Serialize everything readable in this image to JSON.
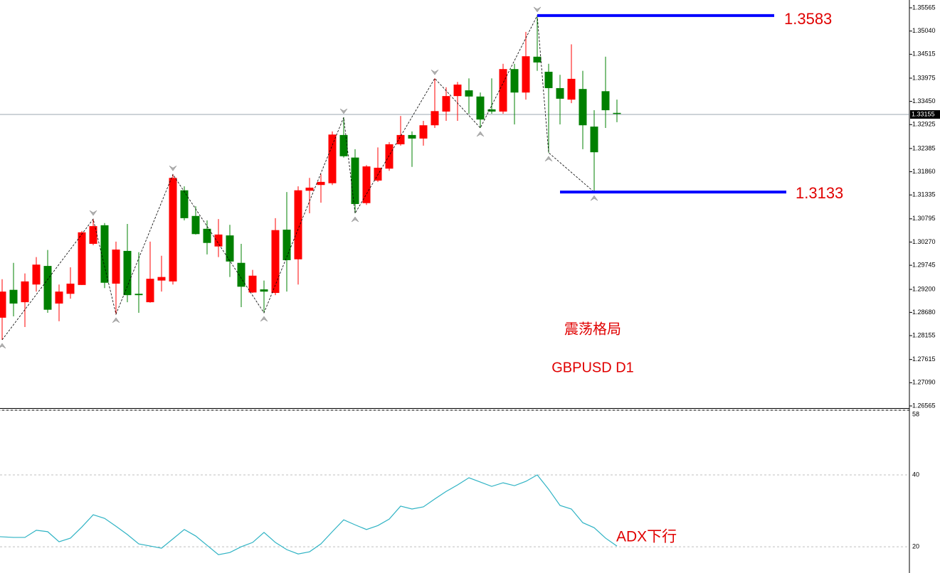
{
  "chart_data": [
    {
      "type": "candlestick",
      "symbol": "GBPUSD D1",
      "annotation": "震荡格局",
      "levels": [
        "1.3583",
        "1.3133"
      ],
      "up_color": "#ff0000",
      "down_color": "#008000",
      "open": [
        1.2856,
        1.2919,
        1.2891,
        1.2931,
        1.2973,
        1.2888,
        1.291,
        1.293,
        1.3023,
        1.3065,
        1.2933,
        1.3007,
        1.291,
        1.2891,
        1.294,
        1.2938,
        1.3144,
        1.3086,
        1.3057,
        1.3017,
        1.3042,
        1.298,
        1.2913,
        1.292,
        1.2912,
        1.3055,
        1.2988,
        1.3143,
        1.3156,
        1.316,
        1.3269,
        1.3218,
        1.3115,
        1.3166,
        1.3193,
        1.3248,
        1.3269,
        1.3261,
        1.3291,
        1.3322,
        1.3357,
        1.337,
        1.3356,
        1.3327,
        1.3322,
        1.3418,
        1.3365,
        1.3446,
        1.3412,
        1.3375,
        1.3349,
        1.3373,
        1.3288,
        1.3368,
        1.3319
      ],
      "high": [
        1.2943,
        1.298,
        1.2956,
        1.2993,
        1.3009,
        1.2931,
        1.297,
        1.3052,
        1.3079,
        1.307,
        1.3028,
        1.3068,
        1.3004,
        1.3028,
        1.2996,
        1.318,
        1.3153,
        1.3108,
        1.3076,
        1.3079,
        1.3066,
        1.3023,
        1.2964,
        1.294,
        1.3081,
        1.314,
        1.3153,
        1.3172,
        1.318,
        1.3277,
        1.3309,
        1.3237,
        1.3201,
        1.3241,
        1.3253,
        1.3312,
        1.3277,
        1.3301,
        1.3397,
        1.3377,
        1.3389,
        1.3397,
        1.3365,
        1.3397,
        1.343,
        1.343,
        1.3502,
        1.3539,
        1.343,
        1.3405,
        1.3474,
        1.3414,
        1.3325,
        1.3446,
        1.3349
      ],
      "low": [
        1.2806,
        1.2859,
        1.2835,
        1.2915,
        1.2867,
        1.2848,
        1.2899,
        1.293,
        1.302,
        1.2923,
        1.2864,
        1.2891,
        1.2867,
        1.289,
        1.2915,
        1.2931,
        1.3076,
        1.3044,
        1.2999,
        1.2993,
        1.2948,
        1.288,
        1.2912,
        1.2867,
        1.2907,
        1.2915,
        1.2931,
        1.3092,
        1.3116,
        1.3156,
        1.3218,
        1.3092,
        1.3111,
        1.3163,
        1.3188,
        1.3245,
        1.3197,
        1.3245,
        1.3285,
        1.3301,
        1.3301,
        1.3317,
        1.3285,
        1.3317,
        1.3317,
        1.3293,
        1.3349,
        1.3414,
        1.3229,
        1.3293,
        1.3341,
        1.3237,
        1.314,
        1.3285,
        1.3298
      ],
      "close": [
        1.2915,
        1.2888,
        1.2938,
        1.2976,
        1.2874,
        1.2915,
        1.2933,
        1.3049,
        1.3063,
        1.2935,
        1.301,
        1.2907,
        1.2907,
        1.2944,
        1.2948,
        1.3172,
        1.3081,
        1.3045,
        1.3025,
        1.3044,
        1.2983,
        1.2926,
        1.2951,
        1.2915,
        1.3054,
        1.2986,
        1.3144,
        1.315,
        1.3163,
        1.327,
        1.3221,
        1.3113,
        1.3198,
        1.3195,
        1.3248,
        1.3269,
        1.3261,
        1.3291,
        1.3323,
        1.3357,
        1.3383,
        1.3356,
        1.3304,
        1.3322,
        1.3418,
        1.3365,
        1.3447,
        1.3433,
        1.3375,
        1.3351,
        1.3396,
        1.3291,
        1.323,
        1.3325,
        1.3317
      ],
      "last_price": 1.33155,
      "ylim": [
        1.26517,
        1.35742
      ],
      "yticks": [
        1.35565,
        {
          "value": 1.3504,
          "label": "1.35040"
        },
        1.34515,
        1.33975,
        {
          "value": 1.3345,
          "label": "1.33450"
        },
        1.32925,
        1.32385,
        {
          "value": 1.3186,
          "label": "1.31860"
        },
        1.31335,
        1.30795,
        {
          "value": 1.3027,
          "label": "1.30270"
        },
        1.29745,
        {
          "value": 1.292,
          "label": "1.29200"
        },
        {
          "value": 1.2868,
          "label": "1.28680"
        },
        1.28155,
        1.27615,
        {
          "value": 1.2709,
          "label": "1.27090"
        },
        1.26565
      ]
    },
    {
      "type": "line",
      "annotation": "ADX下行",
      "color": "#2fb3c4",
      "values": [
        22.8,
        22.6,
        22.6,
        24.6,
        24.2,
        21.4,
        22.4,
        25.5,
        28.9,
        27.9,
        25.7,
        23.4,
        20.8,
        20.2,
        19.6,
        22.2,
        24.8,
        23.0,
        20.4,
        17.8,
        18.4,
        20.0,
        21.2,
        24.0,
        21.2,
        19.2,
        18.0,
        18.6,
        20.8,
        24.2,
        27.5,
        26.1,
        24.8,
        25.9,
        27.7,
        31.3,
        30.5,
        31.1,
        33.3,
        35.4,
        37.2,
        39.2,
        38.0,
        36.8,
        37.8,
        37.0,
        38.2,
        40.0,
        36.0,
        31.5,
        30.5,
        26.7,
        25.3,
        22.4,
        20.2
      ],
      "ylim": [
        12.7,
        58
      ],
      "yticks": [
        20,
        40,
        58
      ],
      "grid": true
    }
  ]
}
